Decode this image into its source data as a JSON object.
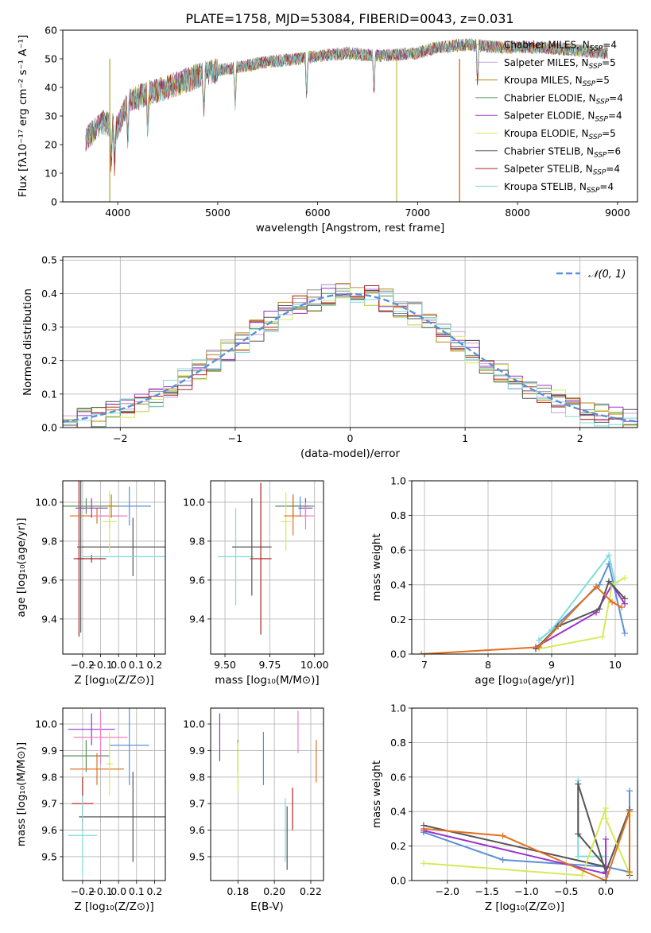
{
  "figure": {
    "title": "PLATE=1758, MJD=53084, FIBERID=0043, z=0.031"
  },
  "chart_data": [
    {
      "id": "spectrum",
      "type": "line",
      "xlabel": "wavelength [Angstrom, rest frame]",
      "ylabel": "Flux [fλ10⁻¹⁷ erg cm⁻² s⁻¹ A⁻¹]",
      "xlim": [
        3450,
        9200
      ],
      "ylim": [
        0,
        60
      ],
      "xticks": [
        4000,
        5000,
        6000,
        7000,
        8000,
        9000
      ],
      "yticks": [
        0,
        10,
        20,
        30,
        40,
        50,
        60
      ],
      "grid": false,
      "legend_position": "top-right",
      "continuum": {
        "x": [
          3680,
          3850,
          4000,
          4100,
          4300,
          4500,
          4800,
          5000,
          5200,
          5500,
          5800,
          6000,
          6300,
          6600,
          7000,
          7200,
          7500,
          7800,
          8200,
          8600,
          8900
        ],
        "y": [
          22,
          28,
          26,
          35,
          38,
          40,
          44,
          46,
          47,
          49,
          50,
          51,
          52,
          51,
          52,
          54,
          55,
          54,
          54,
          53,
          52
        ]
      },
      "series": [
        {
          "name": "Chabrier MILES, N_SSP=4",
          "label": "Chabrier MILES, N",
          "n": "=4",
          "color": "#8c8c8c"
        },
        {
          "name": "Salpeter MILES, N_SSP=5",
          "label": "Salpeter MILES, N",
          "n": "=5",
          "color": "#c9a0dc"
        },
        {
          "name": "Kroupa MILES, N_SSP=5",
          "label": "Kroupa MILES, N",
          "n": "=5",
          "color": "#b8860b"
        },
        {
          "name": "Chabrier ELODIE, N_SSP=4",
          "label": "Chabrier ELODIE, N",
          "n": "=4",
          "color": "#5a8f5a"
        },
        {
          "name": "Salpeter ELODIE, N_SSP=4",
          "label": "Salpeter ELODIE, N",
          "n": "=4",
          "color": "#9932cc"
        },
        {
          "name": "Kroupa ELODIE, N_SSP=5",
          "label": "Kroupa ELODIE, N",
          "n": "=5",
          "color": "#d8e85a"
        },
        {
          "name": "Chabrier STELIB, N_SSP=6",
          "label": "Chabrier STELIB, N",
          "n": "=6",
          "color": "#555555"
        },
        {
          "name": "Salpeter STELIB, N_SSP=4",
          "label": "Salpeter STELIB, N",
          "n": "=4",
          "color": "#b22222"
        },
        {
          "name": "Kroupa STELIB, N_SSP=4",
          "label": "Kroupa STELIB, N",
          "n": "=4",
          "color": "#7fdcdc"
        }
      ],
      "dropouts": [
        {
          "x": 3920,
          "color": "#b8b830"
        },
        {
          "x": 6790,
          "color": "#c8c860"
        },
        {
          "x": 7420,
          "color": "#e07020"
        }
      ]
    },
    {
      "id": "residuals",
      "type": "area",
      "xlabel": "(data-model)/error",
      "ylabel": "Normed distribution",
      "xlim": [
        -2.5,
        2.5
      ],
      "ylim": [
        0,
        0.51
      ],
      "xticks": [
        -2,
        -1,
        0,
        1,
        2
      ],
      "yticks": [
        0.0,
        0.1,
        0.2,
        0.3,
        0.4,
        0.5
      ],
      "grid": true,
      "legend_position": "top-right",
      "legend_label": "𝒩(0, 1)",
      "gaussian": {
        "mean": 0,
        "sigma": 1,
        "color": "#5b8fd9"
      }
    },
    {
      "id": "z-age",
      "type": "scatter",
      "xlabel": "Z [log₁₀(Z/Z⊙)]",
      "ylabel": "age  [log₁₀(age/yr)]",
      "xlim": [
        -0.31,
        0.26
      ],
      "ylim": [
        9.22,
        10.11
      ],
      "xticks": [
        -0.2,
        -0.1,
        0.0,
        0.1,
        0.2
      ],
      "yticks": [
        9.4,
        9.6,
        9.8,
        10.0
      ],
      "grid": true,
      "points": [
        {
          "x": -0.22,
          "y": 9.71,
          "xerr": 0.03,
          "yerr": 0.4,
          "color": "#b22222"
        },
        {
          "x": -0.21,
          "y": 9.77,
          "xerr": 0.02,
          "yerr": 0.44,
          "color": "#555555"
        },
        {
          "x": -0.15,
          "y": 9.71,
          "xerr": 0.08,
          "yerr": 0.02,
          "color": "#b22222"
        },
        {
          "x": 0.08,
          "y": 9.77,
          "xerr": 0.28,
          "yerr": 0.15,
          "color": "#555555"
        },
        {
          "x": 0.05,
          "y": 9.72,
          "xerr": 0.25,
          "yerr": 0.0,
          "color": "#7fdcdc"
        },
        {
          "x": -0.12,
          "y": 9.93,
          "xerr": 0.15,
          "yerr": 0.04,
          "color": "#e07020"
        },
        {
          "x": -0.05,
          "y": 9.93,
          "xerr": 0.1,
          "yerr": 0.06,
          "color": "#f07fc0"
        },
        {
          "x": -0.15,
          "y": 9.97,
          "xerr": 0.09,
          "yerr": 0.05,
          "color": "#9932cc"
        },
        {
          "x": -0.18,
          "y": 9.98,
          "xerr": 0.13,
          "yerr": 0.04,
          "color": "#5a8f5a"
        },
        {
          "x": 0.06,
          "y": 9.98,
          "xerr": 0.12,
          "yerr": 0.1,
          "color": "#5b8fd9"
        },
        {
          "x": -0.05,
          "y": 9.9,
          "xerr": 0.04,
          "yerr": 0.16,
          "color": "#d8e85a"
        },
        {
          "x": -0.04,
          "y": 9.98,
          "xerr": 0.03,
          "yerr": 0.06,
          "color": "#b8860b"
        }
      ]
    },
    {
      "id": "mass-age",
      "type": "scatter",
      "xlabel": "mass [log₁₀(M/M⊙)]",
      "ylabel": "",
      "xlim": [
        9.42,
        10.05
      ],
      "ylim": [
        9.22,
        10.11
      ],
      "xticks": [
        9.5,
        9.75,
        10.0
      ],
      "xticklabels": [
        "9.50",
        "9.75",
        "10.00"
      ],
      "yticks": [
        9.4,
        9.6,
        9.8,
        10.0
      ],
      "grid": true,
      "points": [
        {
          "x": 9.56,
          "y": 9.72,
          "xerr": 0.1,
          "yerr": 0.25,
          "color": "#7fdcdc"
        },
        {
          "x": 9.65,
          "y": 9.77,
          "xerr": 0.11,
          "yerr": 0.25,
          "color": "#555555"
        },
        {
          "x": 9.7,
          "y": 9.71,
          "xerr": 0.06,
          "yerr": 0.39,
          "color": "#b22222"
        },
        {
          "x": 9.92,
          "y": 9.98,
          "xerr": 0.08,
          "yerr": 0.05,
          "color": "#5b8fd9"
        },
        {
          "x": 9.95,
          "y": 9.97,
          "xerr": 0.04,
          "yerr": 0.05,
          "color": "#9932cc"
        },
        {
          "x": 9.95,
          "y": 9.93,
          "xerr": 0.05,
          "yerr": 0.07,
          "color": "#f07fc0"
        },
        {
          "x": 9.88,
          "y": 9.98,
          "xerr": 0.1,
          "yerr": 0.06,
          "color": "#5a8f5a"
        },
        {
          "x": 9.84,
          "y": 9.9,
          "xerr": 0.03,
          "yerr": 0.15,
          "color": "#d8e85a"
        },
        {
          "x": 9.88,
          "y": 9.93,
          "xerr": 0.05,
          "yerr": 0.1,
          "color": "#e07020"
        }
      ]
    },
    {
      "id": "age-weight",
      "type": "line",
      "xlabel": "age  [log₁₀(age/yr)]",
      "ylabel": "mass weight",
      "xlim": [
        6.8,
        10.35
      ],
      "ylim": [
        0,
        1.0
      ],
      "xticks": [
        7,
        8,
        9,
        10
      ],
      "yticks": [
        0.0,
        0.2,
        0.4,
        0.6,
        0.8,
        1.0
      ],
      "grid": true,
      "series": [
        {
          "color": "#5b8fd9",
          "x": [
            8.8,
            9.0,
            9.75,
            9.9,
            10.15
          ],
          "y": [
            0.08,
            0.14,
            0.4,
            0.52,
            0.12
          ]
        },
        {
          "color": "#7fdcdc",
          "x": [
            8.8,
            9.0,
            9.9,
            10.0
          ],
          "y": [
            0.08,
            0.14,
            0.57,
            0.41
          ]
        },
        {
          "color": "#9932cc",
          "x": [
            8.75,
            9.7,
            9.95,
            10.15
          ],
          "y": [
            0.04,
            0.24,
            0.4,
            0.29
          ]
        },
        {
          "color": "#d8e85a",
          "x": [
            8.8,
            9.8,
            9.95,
            10.15
          ],
          "y": [
            0.03,
            0.1,
            0.4,
            0.44
          ]
        },
        {
          "color": "#555555",
          "x": [
            8.75,
            9.1,
            9.75,
            9.9,
            10.15
          ],
          "y": [
            0.03,
            0.16,
            0.26,
            0.42,
            0.32
          ]
        },
        {
          "color": "#e07020",
          "x": [
            6.95,
            8.8,
            9.7,
            9.95,
            10.1
          ],
          "y": [
            0.0,
            0.04,
            0.39,
            0.3,
            0.27
          ]
        }
      ]
    },
    {
      "id": "z-mass",
      "type": "scatter",
      "xlabel": "Z [log₁₀(Z/Z⊙)]",
      "ylabel": "mass [log₁₀(M/M⊙)]",
      "xlim": [
        -0.31,
        0.26
      ],
      "ylim": [
        9.41,
        10.06
      ],
      "xticks": [
        -0.2,
        -0.1,
        0.0,
        0.1,
        0.2
      ],
      "yticks": [
        9.5,
        9.6,
        9.7,
        9.8,
        9.9,
        10.0
      ],
      "grid": true,
      "points": [
        {
          "x": -0.15,
          "y": 9.98,
          "xerr": 0.13,
          "yerr": 0.06,
          "color": "#9932cc"
        },
        {
          "x": -0.1,
          "y": 9.95,
          "xerr": 0.15,
          "yerr": 0.1,
          "color": "#f07fc0"
        },
        {
          "x": 0.06,
          "y": 9.92,
          "xerr": 0.11,
          "yerr": 0.15,
          "color": "#5b8fd9"
        },
        {
          "x": -0.18,
          "y": 9.88,
          "xerr": 0.13,
          "yerr": 0.06,
          "color": "#5a8f5a"
        },
        {
          "x": -0.12,
          "y": 9.83,
          "xerr": 0.15,
          "yerr": 0.06,
          "color": "#e07020"
        },
        {
          "x": -0.05,
          "y": 9.85,
          "xerr": 0.02,
          "yerr": 0.12,
          "color": "#d8e85a"
        },
        {
          "x": -0.2,
          "y": 9.7,
          "xerr": 0.06,
          "yerr": 0.1,
          "color": "#b22222"
        },
        {
          "x": 0.08,
          "y": 9.65,
          "xerr": 0.3,
          "yerr": 0.17,
          "color": "#555555"
        },
        {
          "x": -0.2,
          "y": 9.58,
          "xerr": 0.08,
          "yerr": 0.15,
          "color": "#7fdcdc"
        }
      ]
    },
    {
      "id": "ebv-mass",
      "type": "scatter",
      "xlabel": "E(B-V)",
      "ylabel": "",
      "xlim": [
        0.165,
        0.227
      ],
      "ylim": [
        9.41,
        10.06
      ],
      "xticks": [
        0.18,
        0.2,
        0.22
      ],
      "xticklabels": [
        "0.18",
        "0.20",
        "0.22"
      ],
      "yticks": [
        9.5,
        9.6,
        9.7,
        9.8,
        9.9,
        10.0
      ],
      "grid": true,
      "points": [
        {
          "x": 0.17,
          "y": 9.95,
          "yerr": 0.09,
          "color": "#9932cc"
        },
        {
          "x": 0.18,
          "y": 9.88,
          "yerr": 0.06,
          "color": "#5a8f5a"
        },
        {
          "x": 0.18,
          "y": 9.84,
          "yerr": 0.09,
          "color": "#d8e85a"
        },
        {
          "x": 0.194,
          "y": 9.87,
          "yerr": 0.1,
          "color": "#5b8fd9"
        },
        {
          "x": 0.206,
          "y": 9.6,
          "yerr": 0.12,
          "color": "#7fdcdc"
        },
        {
          "x": 0.207,
          "y": 9.57,
          "yerr": 0.12,
          "color": "#555555"
        },
        {
          "x": 0.21,
          "y": 9.68,
          "yerr": 0.08,
          "color": "#b22222"
        },
        {
          "x": 0.213,
          "y": 9.97,
          "yerr": 0.08,
          "color": "#f07fc0"
        },
        {
          "x": 0.223,
          "y": 9.86,
          "yerr": 0.08,
          "color": "#e07020"
        }
      ]
    },
    {
      "id": "z-weight",
      "type": "line",
      "xlabel": "Z [log₁₀(Z/Z⊙)]",
      "ylabel": "mass weight",
      "xlim": [
        -2.45,
        0.4
      ],
      "ylim": [
        0,
        1.0
      ],
      "xticks": [
        -2.0,
        -1.5,
        -1.0,
        -0.5,
        0.0
      ],
      "yticks": [
        0.0,
        0.2,
        0.4,
        0.6,
        0.8,
        1.0
      ],
      "grid": true,
      "series": [
        {
          "color": "#5b8fd9",
          "x": [
            -2.3,
            -1.3,
            0.0,
            0.3,
            0.3
          ],
          "y": [
            0.28,
            0.12,
            0.08,
            0.05,
            0.52
          ]
        },
        {
          "color": "#7fdcdc",
          "x": [
            -0.35,
            -0.35,
            0.0,
            0.0
          ],
          "y": [
            0.58,
            0.14,
            0.14,
            0.02
          ]
        },
        {
          "color": "#555555",
          "x": [
            -2.3,
            0.0,
            -0.35,
            -0.35,
            0.0,
            0.3,
            0.3
          ],
          "y": [
            0.32,
            0.08,
            0.27,
            0.56,
            0.05,
            0.41,
            0.03
          ]
        },
        {
          "color": "#d8e85a",
          "x": [
            -2.3,
            -0.3,
            0.0,
            0.0,
            0.3,
            0.3
          ],
          "y": [
            0.1,
            0.03,
            0.42,
            0.36,
            0.04,
            0.38
          ]
        },
        {
          "color": "#9932cc",
          "x": [
            -2.3,
            0.0,
            0.0
          ],
          "y": [
            0.29,
            0.04,
            0.24
          ]
        },
        {
          "color": "#e07020",
          "x": [
            -2.3,
            -1.3,
            0.0,
            0.3,
            0.3
          ],
          "y": [
            0.3,
            0.26,
            0.0,
            0.4,
            0.05
          ]
        }
      ]
    }
  ]
}
